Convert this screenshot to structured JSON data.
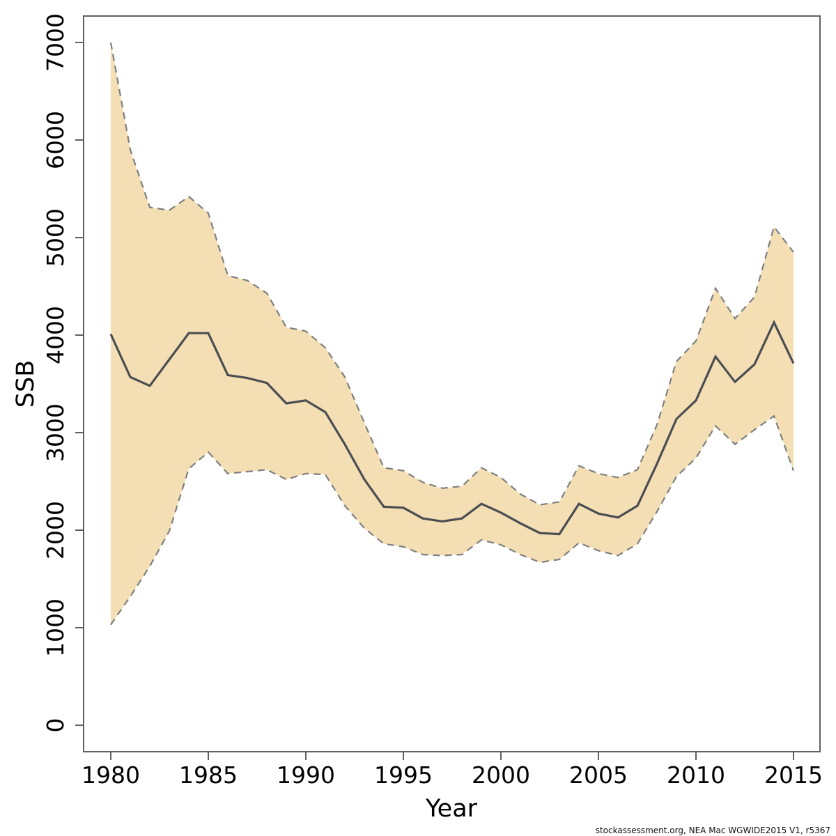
{
  "chart_data": {
    "type": "line",
    "title": "",
    "xlabel": "Year",
    "ylabel": "SSB",
    "x": [
      1980,
      1981,
      1982,
      1983,
      1984,
      1985,
      1986,
      1987,
      1988,
      1989,
      1990,
      1991,
      1992,
      1993,
      1994,
      1995,
      1996,
      1997,
      1998,
      1999,
      2000,
      2001,
      2002,
      2003,
      2004,
      2005,
      2006,
      2007,
      2008,
      2009,
      2010,
      2011,
      2012,
      2013,
      2014,
      2015
    ],
    "series": [
      {
        "name": "median_ssb",
        "style": "solid",
        "values": [
          4010,
          3570,
          3480,
          3750,
          4020,
          4020,
          3590,
          3560,
          3510,
          3300,
          3330,
          3210,
          2880,
          2520,
          2240,
          2230,
          2120,
          2090,
          2120,
          2270,
          2180,
          2070,
          1970,
          1960,
          2270,
          2170,
          2130,
          2250,
          2680,
          3140,
          3330,
          3780,
          3520,
          3700,
          4130,
          3710
        ]
      },
      {
        "name": "lower_ci",
        "style": "dashed",
        "values": [
          1030,
          1320,
          1630,
          1990,
          2630,
          2800,
          2580,
          2600,
          2620,
          2520,
          2580,
          2570,
          2250,
          2020,
          1860,
          1830,
          1750,
          1740,
          1750,
          1900,
          1850,
          1750,
          1670,
          1700,
          1870,
          1790,
          1740,
          1860,
          2190,
          2550,
          2740,
          3070,
          2880,
          3030,
          3170,
          2610
        ]
      },
      {
        "name": "upper_ci",
        "style": "dashed",
        "values": [
          7000,
          5900,
          5310,
          5280,
          5420,
          5250,
          4610,
          4560,
          4430,
          4080,
          4040,
          3870,
          3570,
          3100,
          2640,
          2610,
          2490,
          2430,
          2450,
          2640,
          2540,
          2370,
          2260,
          2290,
          2660,
          2580,
          2540,
          2620,
          3080,
          3730,
          3940,
          4480,
          4170,
          4390,
          5110,
          4850
        ]
      }
    ],
    "x_ticks": [
      1980,
      1985,
      1990,
      1995,
      2000,
      2005,
      2010,
      2015
    ],
    "y_ticks": [
      0,
      1000,
      2000,
      3000,
      4000,
      5000,
      6000,
      7000
    ],
    "xlim": [
      1978.6,
      2016.4
    ],
    "ylim": [
      0,
      7270
    ],
    "grid": false,
    "legend": "none",
    "band_fill": "#f4dfb4",
    "band_border_color": "#7f7f7f",
    "median_line_color": "#4a4d52",
    "axis_color": "#606060"
  },
  "footer": {
    "attribution": "stockassessment.org, NEA Mac WGWIDE2015 V1, r5367"
  }
}
